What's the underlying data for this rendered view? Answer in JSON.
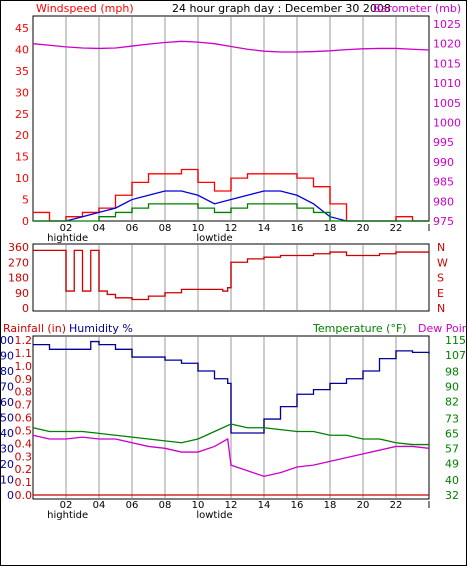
{
  "header": {
    "left_label": "Windspeed (mph)",
    "title": "24 hour graph day : December 30 2008",
    "right_label": "Barometer (mb)"
  },
  "bottom_header": {
    "rain_label": "Rainfall (in)",
    "humidity_label": "Humidity %",
    "temp_label": "Temperature (°F)",
    "dew_label": "Dew Point"
  },
  "colors": {
    "wind_red": "#ff0000",
    "wind_blue": "#0000dd",
    "wind_green": "#008000",
    "barometer": "#cc00cc",
    "direction": "#cc0000",
    "humidity": "#000099",
    "temperature": "#008000",
    "dewpoint": "#cc00cc",
    "rain": "#cc0000",
    "grid": "#cccccc"
  },
  "hour_labels": [
    "02",
    "04",
    "06",
    "08",
    "10",
    "12",
    "14",
    "16",
    "18",
    "20",
    "22",
    "I"
  ],
  "tide_labels": {
    "hightide": "hightide",
    "lowtide": "lowtide"
  },
  "chart_data": [
    {
      "type": "line",
      "name": "wind-and-barometer",
      "xlim": [
        0,
        24
      ],
      "y_left": {
        "label": "Windspeed (mph)",
        "ticks": [
          0,
          5,
          10,
          15,
          20,
          25,
          30,
          35,
          40,
          45
        ],
        "ylim": [
          0,
          45
        ]
      },
      "y_right": {
        "label": "Barometer (mb)",
        "ticks": [
          975,
          980,
          985,
          990,
          995,
          1000,
          1005,
          1010,
          1015,
          1020,
          1025
        ],
        "ylim": [
          975,
          1025
        ]
      },
      "series": [
        {
          "key": "barometer",
          "x": [
            0,
            1,
            2,
            3,
            4,
            5,
            6,
            7,
            8,
            9,
            10,
            11,
            12,
            13,
            14,
            15,
            16,
            17,
            18,
            19,
            20,
            21,
            22,
            23,
            24
          ],
          "values": [
            1020,
            1019.6,
            1019.2,
            1018.9,
            1018.8,
            1018.9,
            1019.4,
            1019.9,
            1020.3,
            1020.6,
            1020.4,
            1020,
            1019.3,
            1018.6,
            1018.1,
            1017.9,
            1017.9,
            1018.0,
            1018.2,
            1018.5,
            1018.7,
            1018.8,
            1018.8,
            1018.6,
            1018.4
          ]
        },
        {
          "key": "gust",
          "x": [
            0,
            1,
            2,
            3,
            4,
            5,
            6,
            7,
            8,
            9,
            10,
            11,
            12,
            13,
            14,
            15,
            16,
            17,
            18,
            19,
            20,
            21,
            22,
            23,
            24
          ],
          "values": [
            2,
            0,
            1,
            2,
            3,
            6,
            9,
            11,
            11,
            12,
            9,
            7,
            10,
            11,
            11,
            11,
            10,
            8,
            4,
            0,
            0,
            0,
            1,
            0,
            0
          ]
        },
        {
          "key": "avg_speed",
          "x": [
            0,
            1,
            2,
            3,
            4,
            5,
            6,
            7,
            8,
            9,
            10,
            11,
            12,
            13,
            14,
            15,
            16,
            17,
            18,
            19,
            20,
            21,
            22,
            23,
            24
          ],
          "values": [
            0,
            0,
            0,
            1,
            2,
            3,
            5,
            6,
            7,
            7,
            6,
            4,
            5,
            6,
            7,
            7,
            6,
            4,
            1,
            0,
            0,
            0,
            0,
            0,
            0
          ]
        },
        {
          "key": "speed",
          "x": [
            0,
            1,
            2,
            3,
            4,
            5,
            6,
            7,
            8,
            9,
            10,
            11,
            12,
            13,
            14,
            15,
            16,
            17,
            18,
            19,
            20,
            21,
            22,
            23,
            24
          ],
          "values": [
            0,
            0,
            0,
            0,
            1,
            2,
            3,
            4,
            4,
            4,
            3,
            2,
            3,
            4,
            4,
            4,
            3,
            2,
            0,
            0,
            0,
            0,
            0,
            0,
            0
          ]
        }
      ]
    },
    {
      "type": "line",
      "name": "wind-direction",
      "xlim": [
        0,
        24
      ],
      "y_left": {
        "ticks": [
          0,
          90,
          180,
          270,
          360
        ],
        "ylim": [
          0,
          360
        ]
      },
      "y_right_labels": [
        "N",
        "W",
        "S",
        "E",
        "N"
      ],
      "series": [
        {
          "key": "direction",
          "x": [
            0,
            1.5,
            2,
            2.5,
            3,
            3.5,
            4,
            4.5,
            5,
            6,
            7,
            8,
            9,
            10,
            11,
            11.5,
            11.8,
            12,
            13,
            14,
            15,
            16,
            17,
            18,
            19,
            20,
            21,
            22,
            23,
            24
          ],
          "values": [
            340,
            340,
            100,
            340,
            100,
            340,
            100,
            80,
            60,
            50,
            70,
            90,
            110,
            110,
            110,
            100,
            120,
            270,
            290,
            300,
            310,
            310,
            320,
            330,
            310,
            310,
            320,
            330,
            330,
            330
          ]
        }
      ]
    },
    {
      "type": "line",
      "name": "rain-humidity-temperature",
      "xlim": [
        0,
        24
      ],
      "y_humidity": {
        "ticks": [
          0,
          10,
          20,
          30,
          40,
          50,
          60,
          70,
          80,
          90,
          100
        ],
        "ylim": [
          0,
          100
        ]
      },
      "y_rain": {
        "ticks": [
          0.0,
          0.1,
          0.2,
          0.3,
          0.4,
          0.5,
          0.6,
          0.7,
          0.8,
          0.9,
          1.0,
          1.1,
          1.2
        ],
        "ylim": [
          0,
          1.2
        ]
      },
      "y_temp": {
        "ticks": [
          32,
          40,
          49,
          57,
          65,
          73,
          82,
          90,
          98,
          107,
          115
        ],
        "ylim": [
          32,
          115
        ]
      },
      "series": [
        {
          "key": "humidity",
          "x": [
            0,
            1,
            2,
            3,
            3.5,
            4,
            5,
            6,
            7,
            8,
            9,
            10,
            11,
            11.8,
            12,
            13,
            14,
            15,
            16,
            17,
            18,
            19,
            20,
            21,
            22,
            23,
            24
          ],
          "values": [
            97,
            94,
            94,
            94,
            99,
            97,
            94,
            89,
            89,
            87,
            85,
            80,
            75,
            72,
            40,
            40,
            49,
            57,
            65,
            68,
            72,
            75,
            80,
            88,
            93,
            92,
            91
          ]
        },
        {
          "key": "temperature",
          "x": [
            0,
            1,
            2,
            3,
            4,
            5,
            6,
            7,
            8,
            9,
            10,
            11,
            12,
            13,
            14,
            15,
            16,
            17,
            18,
            19,
            20,
            21,
            22,
            23,
            24
          ],
          "values": [
            68,
            66,
            66,
            66,
            65,
            64,
            63,
            62,
            61,
            60,
            62,
            66,
            70,
            68,
            68,
            67,
            66,
            66,
            64,
            64,
            62,
            62,
            60,
            59,
            59
          ]
        },
        {
          "key": "dewpoint",
          "x": [
            0,
            1,
            2,
            3,
            4,
            5,
            6,
            7,
            8,
            9,
            10,
            11,
            11.8,
            12,
            13,
            14,
            15,
            16,
            17,
            18,
            19,
            20,
            21,
            22,
            23,
            24
          ],
          "values": [
            64,
            62,
            62,
            63,
            62,
            62,
            60,
            58,
            57,
            55,
            55,
            58,
            62,
            48,
            45,
            42,
            44,
            47,
            48,
            50,
            52,
            54,
            56,
            58,
            58,
            57
          ]
        },
        {
          "key": "rain",
          "x": [
            0,
            24
          ],
          "values": [
            0,
            0
          ]
        }
      ]
    }
  ]
}
